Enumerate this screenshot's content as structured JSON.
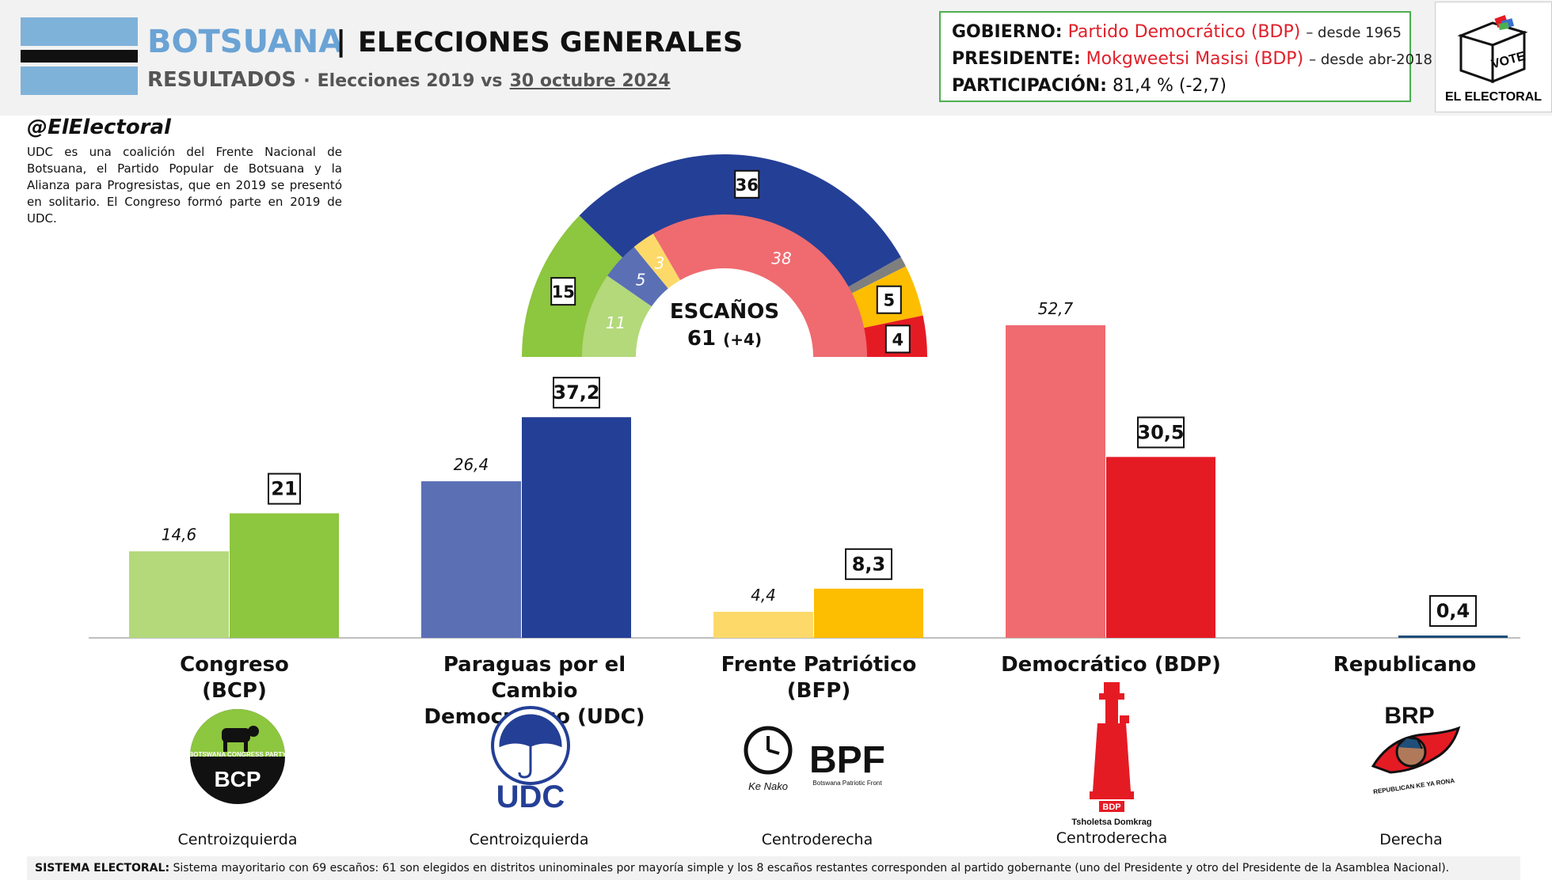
{
  "header": {
    "country": "BOTSUANA",
    "separator": "|",
    "title": "ELECCIONES GENERALES",
    "results_label": "RESULTADOS",
    "dot": "·",
    "comparison": "Elecciones 2019 vs",
    "date": "30 octubre 2024",
    "flag_colors": {
      "blue": "#7fb2d9",
      "black": "#111111",
      "white": "#ffffff"
    }
  },
  "info": {
    "gobierno_label": "GOBIERNO:",
    "gobierno_value": "Partido Democrático (BDP)",
    "gobierno_since": "– desde 1965",
    "presidente_label": "PRESIDENTE:",
    "presidente_value": "Mokgweetsi Masisi (BDP)",
    "presidente_since": "– desde abr-2018",
    "participacion_label": "PARTICIPACIÓN:",
    "participacion_value": "81,4 % (-2,7)"
  },
  "brand": {
    "vote": "VOTE",
    "name": "EL ELECTORAL",
    "handle": "@ElElectoral"
  },
  "note": "UDC es una coalición del Frente Nacional de Botsuana, el Partido Popular de Botsuana y la Alianza para Progresistas, que en 2019 se presentó en solitario. El Congreso formó parte en 2019 de UDC.",
  "parties": [
    {
      "name_line1": "Congreso",
      "name_line2": "(BCP)",
      "ideology": "Centroizquierda",
      "logo_text": "BCP",
      "logo_subtext": "BOTSWANA CONGRESS PARTY"
    },
    {
      "name_line1": "Paraguas por el Cambio",
      "name_line2": "Democrático (UDC)",
      "ideology": "Centroizquierda",
      "logo_text": "UDC",
      "logo_subtext": ""
    },
    {
      "name_line1": "Frente Patriótico",
      "name_line2": "(BFP)",
      "ideology": "Centroderecha",
      "logo_text": "BPF",
      "logo_subtext": "Botswana Patriotic Front",
      "logo_extra": "Ke Nako"
    },
    {
      "name_line1": "Democrático (BDP)",
      "name_line2": "",
      "ideology": "Centroderecha",
      "logo_text": "BDP",
      "logo_subtext": "Tsholetsa Domkrag"
    },
    {
      "name_line1": "Republicano",
      "name_line2": "",
      "ideology": "Derecha",
      "logo_text": "BRP",
      "logo_subtext": "REPUBLICAN KE YA RONA"
    }
  ],
  "chart_data": [
    {
      "type": "bar",
      "categories": [
        "Congreso (BCP)",
        "Paraguas por el Cambio Democrático (UDC)",
        "Frente Patriótico (BFP)",
        "Democrático (BDP)",
        "Republicano"
      ],
      "series": [
        {
          "values": [
            14.6,
            26.4,
            4.4,
            52.7,
            null
          ],
          "labels": [
            "14,6",
            "26,4",
            "4,4",
            "52,7",
            ""
          ],
          "colors": [
            "#b3d97b",
            "#5b6fb5",
            "#fdd96a",
            "#ef6b70",
            "#ffffff"
          ]
        },
        {
          "values": [
            21,
            37.2,
            8.3,
            30.5,
            0.4
          ],
          "labels": [
            "21",
            "37,2",
            "8,3",
            "30,5",
            "0,4"
          ],
          "colors": [
            "#8dc63f",
            "#243f96",
            "#fdbd00",
            "#e51b24",
            "#1f4e79"
          ]
        }
      ],
      "ylim": [
        0,
        60
      ],
      "grid": false
    },
    {
      "type": "pie",
      "title": "ESCAÑOS",
      "total": "61",
      "total_change": "(+4)",
      "outer_ring": [
        {
          "value": 15,
          "label": "15",
          "color": "#8dc63f"
        },
        {
          "value": 36,
          "label": "36",
          "color": "#243f96"
        },
        {
          "value": 1,
          "label": "",
          "color": "#7f7f7f"
        },
        {
          "value": 5,
          "label": "5",
          "color": "#fdbd00"
        },
        {
          "value": 4,
          "label": "4",
          "color": "#e51b24"
        }
      ],
      "inner_ring": [
        {
          "value": 11,
          "label": "11",
          "color": "#b3d97b"
        },
        {
          "value": 5,
          "label": "5",
          "color": "#5b6fb5"
        },
        {
          "value": 3,
          "label": "3",
          "color": "#fdd96a"
        },
        {
          "value": 38,
          "label": "38",
          "color": "#ef6b70"
        }
      ]
    }
  ],
  "footer": {
    "label": "SISTEMA ELECTORAL:",
    "text": "Sistema mayoritario con 69 escaños: 61 son elegidos en distritos uninominales por mayoría simple y los 8 escaños restantes corresponden al partido gobernante (uno del Presidente y otro del Presidente de la Asamblea Nacional)."
  }
}
